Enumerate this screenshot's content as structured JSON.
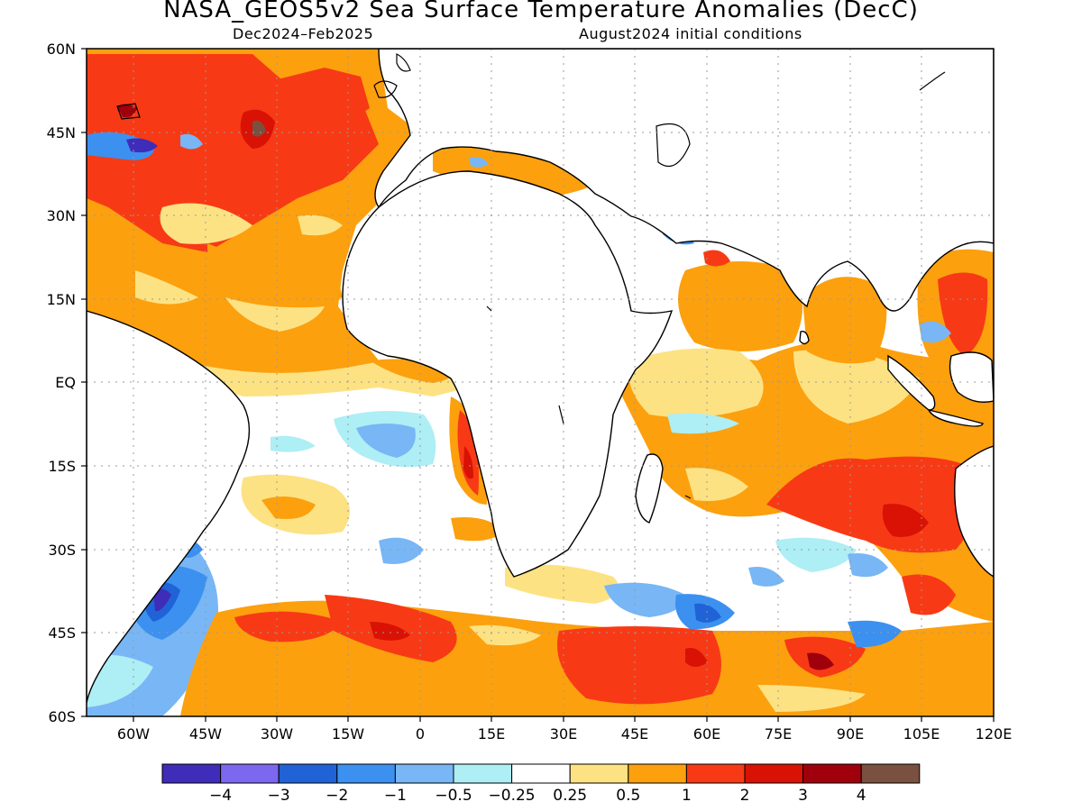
{
  "title": "NASA_GEOS5v2 Sea Surface Temperature Anomalies (DecC)",
  "subtitle_left": "Dec2024–Feb2025",
  "subtitle_right": "August2024 initial conditions",
  "lat_labels": [
    "60N",
    "45N",
    "30N",
    "15N",
    "EQ",
    "15S",
    "30S",
    "45S",
    "60S"
  ],
  "lon_labels": [
    "60W",
    "45W",
    "30W",
    "15W",
    "0",
    "15E",
    "30E",
    "45E",
    "60E",
    "75E",
    "90E",
    "105E",
    "120E"
  ],
  "colorbar": {
    "colors": [
      "#3f2cb8",
      "#7b68ee",
      "#1f63d6",
      "#3c90f0",
      "#78b6f5",
      "#aeeef5",
      "#ffffff",
      "#fde283",
      "#fca00e",
      "#f73a15",
      "#d91205",
      "#a0000b",
      "#7a5040"
    ],
    "labels": [
      "−4",
      "−3",
      "−2",
      "−1",
      "−0.5",
      "−0.25",
      "0.25",
      "0.5",
      "1",
      "2",
      "3",
      "4"
    ]
  }
}
